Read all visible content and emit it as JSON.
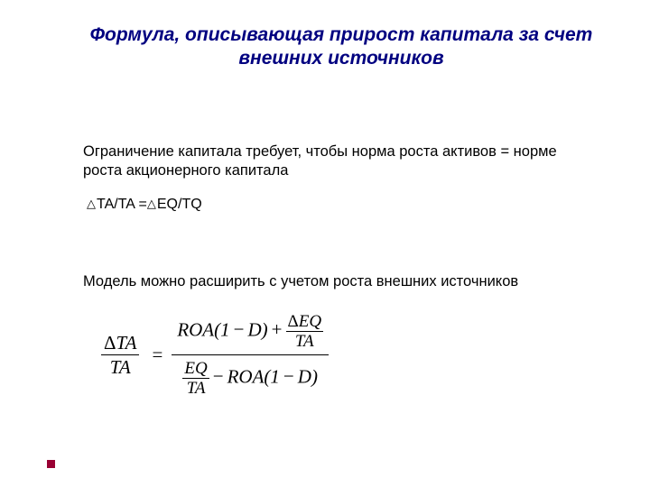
{
  "title": "Формула, описывающая прирост капитала за счет внешних источников",
  "para1": "Ограничение капитала требует, чтобы норма роста активов = норме роста  акционерного капитала",
  "simple_formula": {
    "lhs": "TA/TA",
    "eq": "=",
    "rhs": "EQ/TQ"
  },
  "para2": "Модель можно расширить с учетом роста внешних источников",
  "big": {
    "left_num_delta": "Δ",
    "left_num_var": "TA",
    "left_den": "TA",
    "eq": "=",
    "r_num_term1_a": "ROA",
    "r_num_term1_b": "(1",
    "r_num_term1_c": "−",
    "r_num_term1_d": "D",
    "r_num_term1_e": ")",
    "plus": "+",
    "r_num_frac_num_delta": "Δ",
    "r_num_frac_num": "EQ",
    "r_num_frac_den": "TA",
    "r_den_frac_num": "EQ",
    "r_den_frac_den": "TA",
    "minus": "−",
    "r_den_term2_a": "ROA",
    "r_den_term2_b": "(1",
    "r_den_term2_c": "−",
    "r_den_term2_d": "D",
    "r_den_term2_e": ")"
  },
  "colors": {
    "title": "#000080",
    "bullet": "#990033",
    "text": "#000000",
    "background": "#ffffff"
  }
}
